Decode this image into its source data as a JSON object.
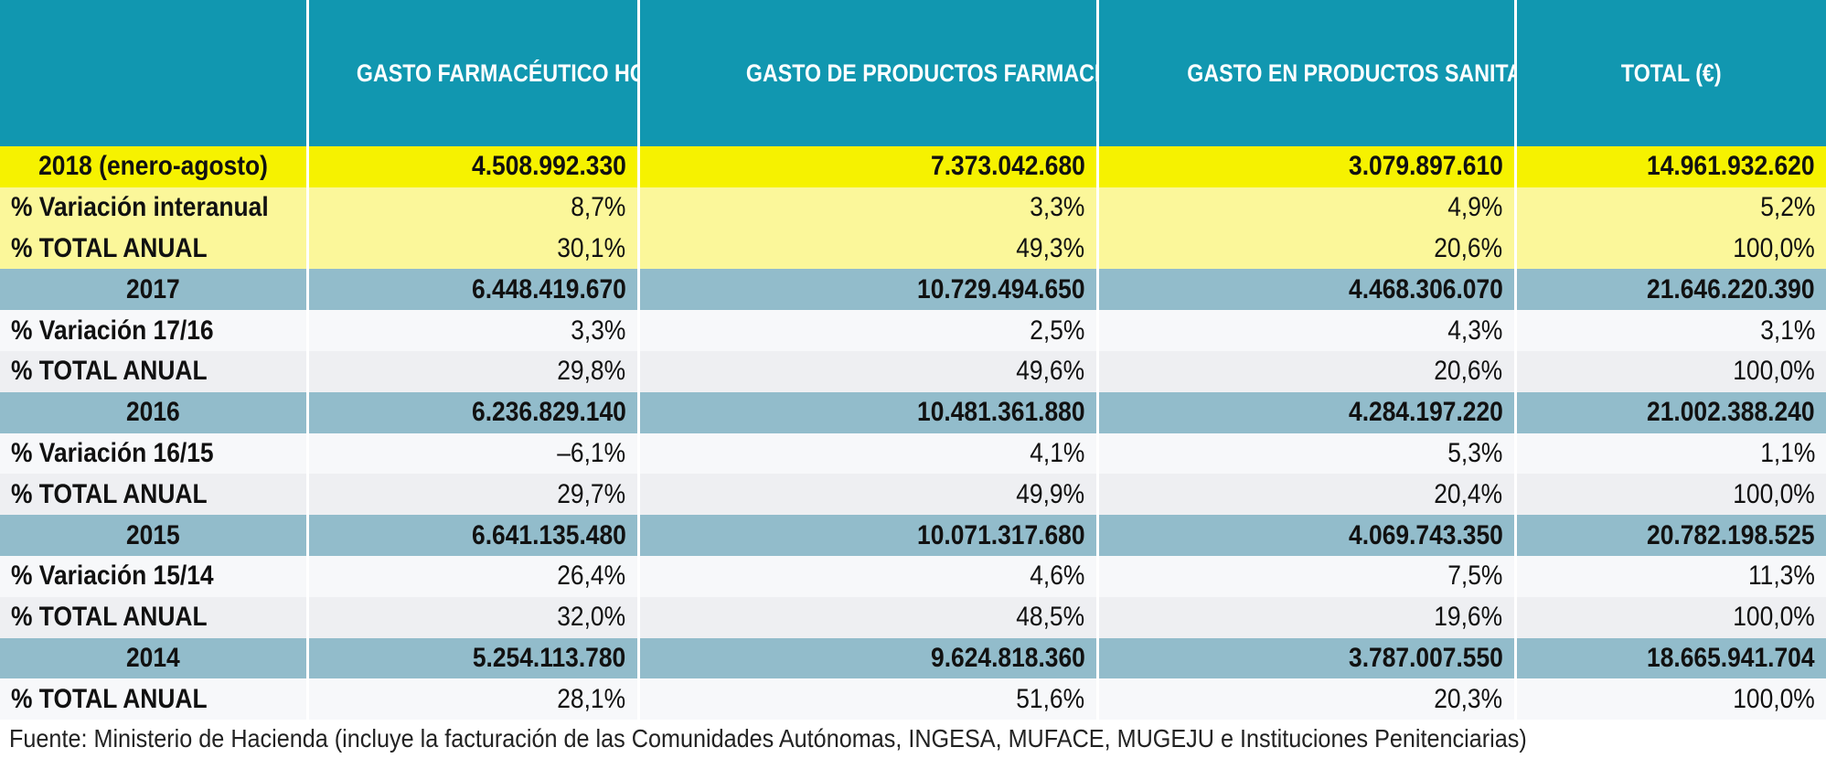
{
  "table": {
    "headers": [
      "",
      "GASTO FARMACÉUTICO HOSPITALARIO (€)",
      "GASTO DE PRODUCTOS FARMACÉUTICOS Y SANITARIOS POR RECETA MÉDICA U ORDEN DE DISPENSACIÓN (€)",
      "GASTO EN PRODUCTOS SANITARIOS SIN RECETA MÉDICA U ORDEN DE DISPENSACIÓN (€)",
      "TOTAL (€)"
    ],
    "rows": [
      {
        "cells": [
          "2018 (enero-agosto)",
          "4.508.992.330",
          "7.373.042.680",
          "3.079.897.610",
          "14.961.932.620"
        ]
      },
      {
        "cells": [
          "% Variación interanual",
          "8,7%",
          "3,3%",
          "4,9%",
          "5,2%"
        ]
      },
      {
        "cells": [
          "% TOTAL ANUAL",
          "30,1%",
          "49,3%",
          "20,6%",
          "100,0%"
        ]
      },
      {
        "cells": [
          "2017",
          "6.448.419.670",
          "10.729.494.650",
          "4.468.306.070",
          "21.646.220.390"
        ]
      },
      {
        "cells": [
          "% Variación 17/16",
          "3,3%",
          "2,5%",
          "4,3%",
          "3,1%"
        ]
      },
      {
        "cells": [
          "% TOTAL ANUAL",
          "29,8%",
          "49,6%",
          "20,6%",
          "100,0%"
        ]
      },
      {
        "cells": [
          "2016",
          "6.236.829.140",
          "10.481.361.880",
          "4.284.197.220",
          "21.002.388.240"
        ]
      },
      {
        "cells": [
          "% Variación 16/15",
          "–6,1%",
          "4,1%",
          "5,3%",
          "1,1%"
        ]
      },
      {
        "cells": [
          "% TOTAL ANUAL",
          "29,7%",
          "49,9%",
          "20,4%",
          "100,0%"
        ]
      },
      {
        "cells": [
          "2015",
          "6.641.135.480",
          "10.071.317.680",
          "4.069.743.350",
          "20.782.198.525"
        ]
      },
      {
        "cells": [
          "% Variación 15/14",
          "26,4%",
          "4,6%",
          "7,5%",
          "11,3%"
        ]
      },
      {
        "cells": [
          "% TOTAL ANUAL",
          "32,0%",
          "48,5%",
          "19,6%",
          "100,0%"
        ]
      },
      {
        "cells": [
          "2014",
          "5.254.113.780",
          "9.624.818.360",
          "3.787.007.550",
          "18.665.941.704"
        ]
      },
      {
        "cells": [
          "% TOTAL ANUAL",
          "28,1%",
          "51,6%",
          "20,3%",
          "100,0%"
        ]
      }
    ]
  },
  "colors": {
    "header_bg": "#1197b0",
    "highlight_year_bg": "#f6f200",
    "highlight_sub_bg": "#fbf79a",
    "year_row_bg": "#92bccb"
  },
  "footnote": "Fuente: Ministerio de Hacienda (incluye la facturación de las Comunidades Autónomas, INGESA, MUFACE, MUGEJU e Instituciones Penitenciarias)"
}
